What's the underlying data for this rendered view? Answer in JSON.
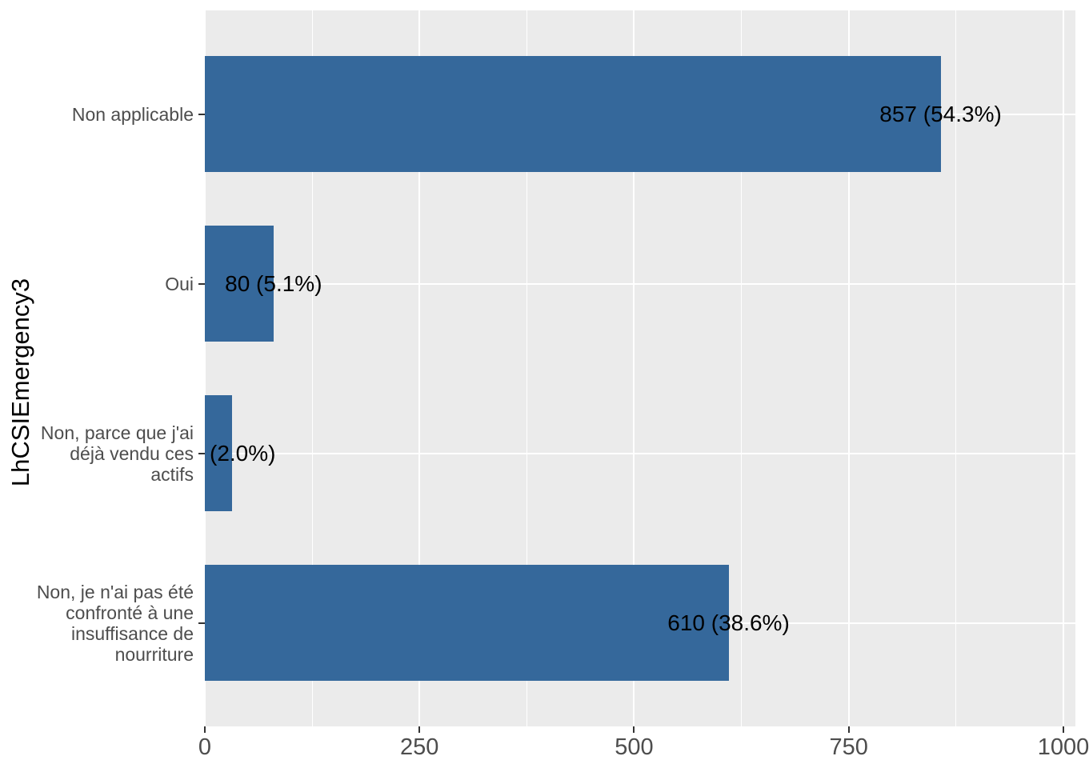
{
  "chart_data": {
    "type": "bar",
    "orientation": "horizontal",
    "title": "",
    "xlabel": "",
    "ylabel": "LhCSIEmergency3",
    "categories": [
      {
        "label_lines": [
          "Non applicable"
        ],
        "value": 857,
        "bar_label": "857 (54.3%)"
      },
      {
        "label_lines": [
          "Oui"
        ],
        "value": 80,
        "bar_label": "80 (5.1%)"
      },
      {
        "label_lines": [
          "Non, parce que j'ai",
          "déjà vendu ces",
          "actifs"
        ],
        "value": 32,
        "bar_label": "(2.0%)"
      },
      {
        "label_lines": [
          "Non, je n'ai pas été",
          "confronté à une",
          "insuffisance de",
          "nourriture"
        ],
        "value": 610,
        "bar_label": "610 (38.6%)"
      }
    ],
    "x_axis": {
      "tick_values": [
        0,
        250,
        500,
        750,
        1000
      ],
      "tick_labels": [
        "0",
        "250",
        "500",
        "750",
        "1000"
      ],
      "minor_gridlines": [
        125,
        375,
        625,
        875
      ],
      "range": [
        0,
        1014
      ]
    },
    "legend": null,
    "grid": true,
    "colors": {
      "bar_fill": "#35689B",
      "panel_background": "#EBEBEB",
      "gridline": "#FFFFFF",
      "axis_text": "#4D4D4D",
      "value_label_text": "#000000",
      "tick_mark": "#333333"
    }
  }
}
